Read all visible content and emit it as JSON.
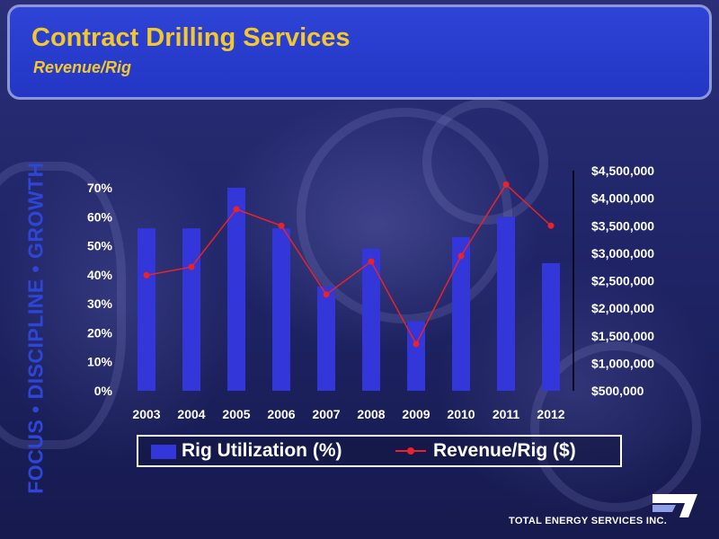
{
  "header": {
    "title": "Contract Drilling Services",
    "subtitle": "Revenue/Rig"
  },
  "side_banner": "FOCUS • DISCIPLINE • GROWTH",
  "company": {
    "name": "TOTAL ENERGY SERVICES INC.",
    "logo_icon": "total-energy-logo-icon"
  },
  "colors": {
    "bar": "#3336d8",
    "line": "#e8232a",
    "header_text": "#f2c82e",
    "side_text": "#2e46d8"
  },
  "chart_data": {
    "type": "bar",
    "categories": [
      "2003",
      "2004",
      "2005",
      "2006",
      "2007",
      "2008",
      "2009",
      "2010",
      "2011",
      "2012"
    ],
    "series": [
      {
        "name": "Rig Utilization (%)",
        "type": "bar",
        "axis": "left",
        "values": [
          56,
          56,
          70,
          56,
          36,
          49,
          24,
          53,
          60,
          44
        ]
      },
      {
        "name": "Revenue/Rig ($)",
        "type": "line",
        "axis": "right",
        "values": [
          2600000,
          2750000,
          3800000,
          3500000,
          2250000,
          2850000,
          1350000,
          2950000,
          4250000,
          3500000
        ]
      }
    ],
    "left_axis": {
      "ylim": [
        0,
        70
      ],
      "ticks": [
        0,
        10,
        20,
        30,
        40,
        50,
        60,
        70
      ],
      "tick_labels": [
        "0%",
        "10%",
        "20%",
        "30%",
        "40%",
        "50%",
        "60%",
        "70%"
      ]
    },
    "right_axis": {
      "ylim": [
        500000,
        4500000
      ],
      "ticks": [
        500000,
        1000000,
        1500000,
        2000000,
        2500000,
        3000000,
        3500000,
        4000000,
        4500000
      ],
      "tick_labels": [
        "$500,000",
        "$1,000,000",
        "$1,500,000",
        "$2,000,000",
        "$2,500,000",
        "$3,000,000",
        "$3,500,000",
        "$4,000,000",
        "$4,500,000"
      ]
    },
    "grid": false,
    "legend_position": "bottom"
  }
}
